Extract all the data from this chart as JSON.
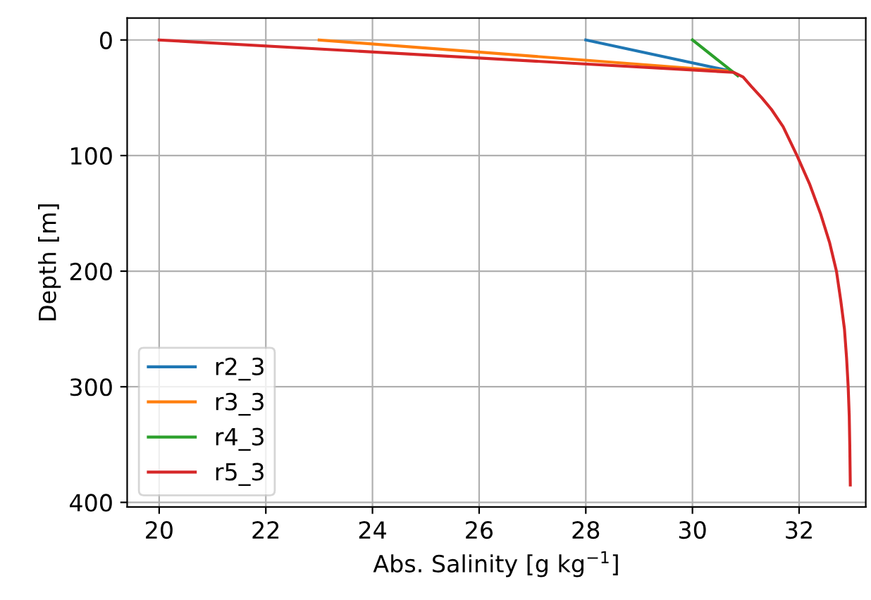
{
  "chart_data": {
    "type": "line",
    "xlabel": "Abs. Salinity [g kg$^{−1}$]",
    "ylabel": "Depth [m]",
    "xlim": [
      19.4,
      33.25
    ],
    "xticks": [
      20,
      22,
      24,
      26,
      28,
      30,
      32
    ],
    "ylim": [
      404,
      -19
    ],
    "yticks": [
      0,
      100,
      200,
      300,
      400
    ],
    "grid": true,
    "legend": "bottom left",
    "series": [
      {
        "name": "r2_3",
        "color": "#1f77b4",
        "x": [
          28,
          30.63
        ],
        "values": [
          0,
          26
        ]
      },
      {
        "name": "r3_3",
        "color": "#ff7f0e",
        "x": [
          23,
          30.7
        ],
        "values": [
          0,
          27
        ]
      },
      {
        "name": "r4_3",
        "color": "#2ca02c",
        "x": [
          30,
          30.85
        ],
        "values": [
          0,
          31
        ]
      },
      {
        "name": "r5_3",
        "color": "#d62728",
        "x": [
          20,
          30.77,
          30.95,
          31.1,
          31.3,
          31.48,
          31.7,
          31.96,
          32.2,
          32.4,
          32.57,
          32.7,
          32.78,
          32.85,
          32.89,
          32.92,
          32.94,
          32.95,
          32.96
        ],
        "values": [
          0,
          28,
          32,
          40,
          50,
          60,
          75,
          100,
          125,
          150,
          175,
          200,
          225,
          250,
          275,
          300,
          325,
          350,
          385
        ]
      }
    ]
  }
}
